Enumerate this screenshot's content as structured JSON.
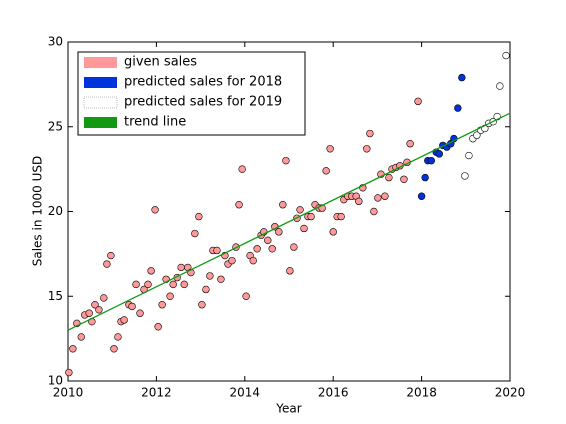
{
  "chart_data": {
    "type": "scatter",
    "xlabel": "Year",
    "ylabel": "Sales in 1000 USD",
    "xlim": [
      2010,
      2020
    ],
    "xticks": [
      2010,
      2012,
      2014,
      2016,
      2018,
      2020
    ],
    "ylim": [
      10,
      30
    ],
    "yticks": [
      10,
      15,
      20,
      25,
      30
    ],
    "legend": "upper left",
    "series": [
      {
        "name": "given sales",
        "type": "scatter",
        "color": "#ff9999",
        "x": [
          2010.02,
          2010.11,
          2010.2,
          2010.3,
          2010.38,
          2010.48,
          2010.54,
          2010.61,
          2010.7,
          2010.81,
          2010.88,
          2010.97,
          2011.04,
          2011.13,
          2011.2,
          2011.27,
          2011.38,
          2011.45,
          2011.54,
          2011.63,
          2011.72,
          2011.81,
          2011.88,
          2011.97,
          2012.04,
          2012.13,
          2012.22,
          2012.31,
          2012.38,
          2012.47,
          2012.56,
          2012.63,
          2012.71,
          2012.78,
          2012.87,
          2012.96,
          2013.03,
          2013.12,
          2013.21,
          2013.28,
          2013.37,
          2013.46,
          2013.55,
          2013.62,
          2013.71,
          2013.8,
          2013.87,
          2013.94,
          2014.03,
          2014.12,
          2014.19,
          2014.28,
          2014.37,
          2014.43,
          2014.52,
          2014.62,
          2014.68,
          2014.77,
          2014.86,
          2014.93,
          2015.02,
          2015.11,
          2015.18,
          2015.25,
          2015.34,
          2015.43,
          2015.5,
          2015.59,
          2015.68,
          2015.75,
          2015.84,
          2015.93,
          2016.0,
          2016.09,
          2016.18,
          2016.24,
          2016.33,
          2016.42,
          2016.52,
          2016.58,
          2016.67,
          2016.76,
          2016.83,
          2016.92,
          2017.01,
          2017.08,
          2017.17,
          2017.26,
          2017.33,
          2017.42,
          2017.51,
          2017.6,
          2017.67,
          2017.74,
          2017.92
        ],
        "values": [
          10.5,
          11.9,
          13.4,
          12.6,
          13.9,
          14.0,
          13.5,
          14.5,
          14.2,
          14.9,
          16.9,
          17.4,
          11.9,
          12.6,
          13.5,
          13.6,
          14.5,
          14.4,
          15.7,
          14.0,
          15.4,
          15.7,
          16.5,
          20.1,
          13.2,
          14.5,
          16.0,
          15.0,
          15.7,
          16.1,
          16.7,
          15.7,
          16.7,
          16.4,
          18.7,
          19.7,
          14.5,
          15.4,
          16.2,
          17.7,
          17.7,
          16.0,
          17.4,
          16.9,
          17.1,
          17.9,
          20.4,
          22.5,
          15.0,
          17.4,
          17.1,
          17.8,
          18.6,
          18.8,
          18.3,
          17.8,
          19.1,
          18.8,
          20.4,
          23.0,
          16.5,
          17.9,
          19.6,
          20.1,
          19.0,
          19.7,
          19.7,
          20.4,
          20.2,
          20.2,
          22.4,
          23.7,
          18.8,
          19.7,
          19.7,
          20.7,
          20.9,
          20.9,
          20.9,
          20.6,
          21.4,
          23.7,
          24.6,
          20.0,
          20.8,
          22.2,
          20.9,
          22.0,
          22.5,
          22.6,
          22.7,
          21.9,
          22.9,
          24.0,
          26.5
        ]
      },
      {
        "name": "predicted sales for 2018",
        "type": "scatter",
        "color": "#0033dd",
        "x": [
          2018.0,
          2018.08,
          2018.14,
          2018.22,
          2018.33,
          2018.4,
          2018.48,
          2018.57,
          2018.66,
          2018.73,
          2018.82,
          2018.91
        ],
        "values": [
          20.9,
          22.0,
          23.0,
          23.0,
          23.5,
          23.4,
          23.9,
          23.8,
          24.0,
          24.3,
          26.1,
          27.9
        ]
      },
      {
        "name": "predicted sales for 2019",
        "type": "scatter",
        "color": "#ffffff",
        "x": [
          2018.98,
          2019.07,
          2019.16,
          2019.25,
          2019.34,
          2019.43,
          2019.52,
          2019.62,
          2019.71,
          2019.77,
          2019.91
        ],
        "values": [
          22.1,
          23.3,
          24.3,
          24.5,
          24.8,
          24.9,
          25.2,
          25.3,
          25.6,
          27.4,
          29.2
        ]
      },
      {
        "name": "trend line",
        "type": "line",
        "color": "#119911",
        "x": [
          2010,
          2020
        ],
        "values": [
          13.0,
          25.8
        ]
      }
    ]
  }
}
